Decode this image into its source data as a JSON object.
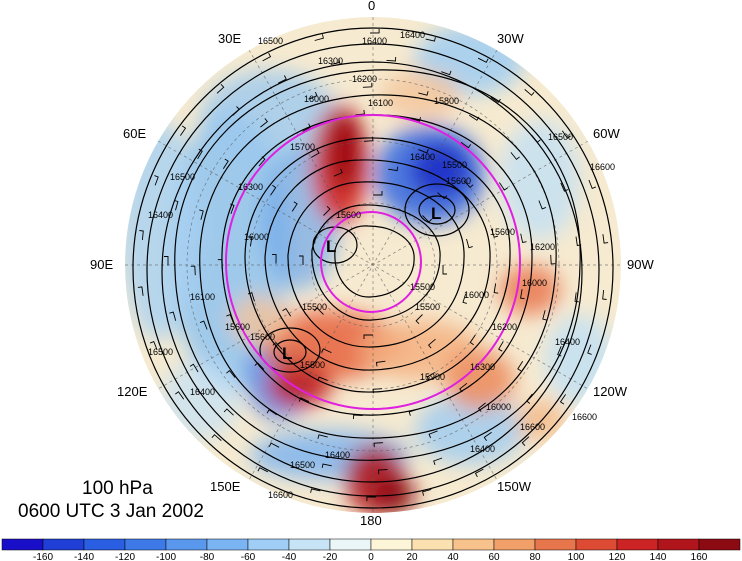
{
  "title": {
    "level": "100 hPa",
    "time": "0600 UTC 3 Jan 2002"
  },
  "longitude_labels": [
    {
      "id": "lon-0",
      "text": "0"
    },
    {
      "id": "lon-30w",
      "text": "30W"
    },
    {
      "id": "lon-60w",
      "text": "60W"
    },
    {
      "id": "lon-90w",
      "text": "90W"
    },
    {
      "id": "lon-120w",
      "text": "120W"
    },
    {
      "id": "lon-150w",
      "text": "150W"
    },
    {
      "id": "lon-180",
      "text": "180"
    },
    {
      "id": "lon-150e",
      "text": "150E"
    },
    {
      "id": "lon-120e",
      "text": "120E"
    },
    {
      "id": "lon-90e",
      "text": "90E"
    },
    {
      "id": "lon-60e",
      "text": "60E"
    },
    {
      "id": "lon-30e",
      "text": "30E"
    }
  ],
  "contour_labels": [
    "16500",
    "16400",
    "16400",
    "16300",
    "16200",
    "16100",
    "16000",
    "15800",
    "15700",
    "15600",
    "15500",
    "15600",
    "16000",
    "16400",
    "16100",
    "16000",
    "15900",
    "15500",
    "16400",
    "16500",
    "16600",
    "15600",
    "16300",
    "16200",
    "16600",
    "15500",
    "16500",
    "16400",
    "15600",
    "16600",
    "16200",
    "16000",
    "16500",
    "16400",
    "15500",
    "16400",
    "16500",
    "16600",
    "15600",
    "16300",
    "15500",
    "16000",
    "16400"
  ],
  "lows": [
    "L",
    "L",
    "L"
  ],
  "colorbar": {
    "ticks": [
      "-160",
      "-140",
      "-120",
      "-100",
      "-80",
      "-60",
      "-40",
      "-20",
      "0",
      "20",
      "40",
      "60",
      "80",
      "100",
      "120",
      "140",
      "160"
    ],
    "colors": [
      "#1a0fc8",
      "#1f3fd6",
      "#2a5ee3",
      "#3d7ae8",
      "#5a98ee",
      "#7ab4f2",
      "#9fcdf5",
      "#c7e4f7",
      "#eaf6f8",
      "#fdf5d8",
      "#fbe0b0",
      "#f7c28c",
      "#f1a06a",
      "#e8764c",
      "#de4b34",
      "#cc2424",
      "#b0151c",
      "#8c0a12"
    ]
  },
  "colors": {
    "ring": "#e020e0",
    "contour": "#000000"
  }
}
